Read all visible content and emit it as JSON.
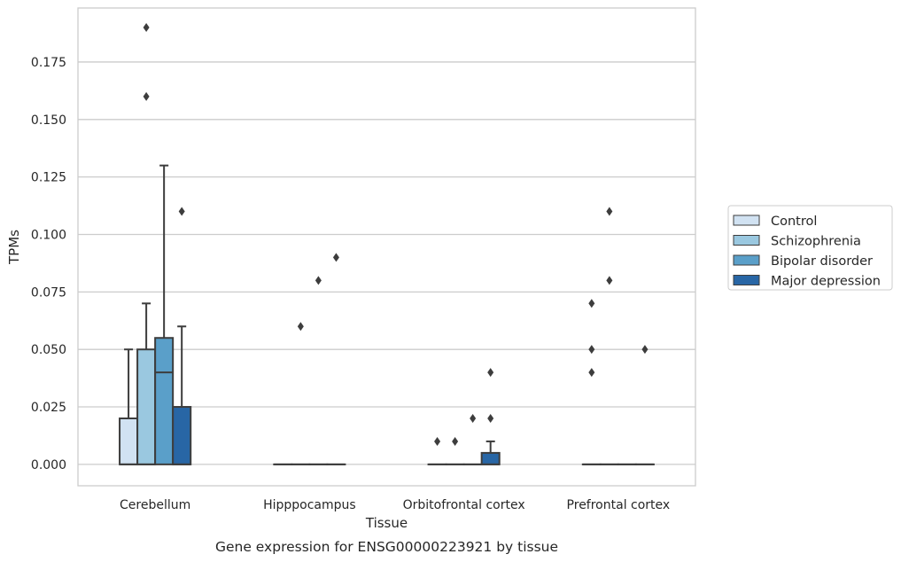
{
  "chart_data": {
    "type": "box",
    "xlabel": "Tissue",
    "ylabel": "TPMs",
    "caption": "Gene expression for ENSG00000223921 by tissue",
    "categories": [
      "Cerebellum",
      "Hipppocampus",
      "Orbitofrontal cortex",
      "Prefrontal cortex"
    ],
    "ylim": [
      -0.0093,
      0.1985
    ],
    "yticks": [
      0.0,
      0.025,
      0.05,
      0.075,
      0.1,
      0.125,
      0.15,
      0.175
    ],
    "ytick_labels": [
      "0.000",
      "0.025",
      "0.050",
      "0.075",
      "0.100",
      "0.125",
      "0.150",
      "0.175"
    ],
    "grid": true,
    "legend_position": "right",
    "series": [
      {
        "name": "Control",
        "color": "#d1e2f2",
        "boxes": [
          {
            "q1": 0.0,
            "median": 0.0,
            "q3": 0.02,
            "whisker_low": 0.0,
            "whisker_high": 0.05,
            "outliers": []
          },
          {
            "q1": 0.0,
            "median": 0.0,
            "q3": 0.0,
            "whisker_low": 0.0,
            "whisker_high": 0.0,
            "outliers": []
          },
          {
            "q1": 0.0,
            "median": 0.0,
            "q3": 0.0,
            "whisker_low": 0.0,
            "whisker_high": 0.0,
            "outliers": [
              0.01
            ]
          },
          {
            "q1": 0.0,
            "median": 0.0,
            "q3": 0.0,
            "whisker_low": 0.0,
            "whisker_high": 0.0,
            "outliers": [
              0.07,
              0.05,
              0.04
            ]
          }
        ]
      },
      {
        "name": "Schizophrenia",
        "color": "#9ac8e0",
        "boxes": [
          {
            "q1": 0.0,
            "median": 0.0,
            "q3": 0.05,
            "whisker_low": 0.0,
            "whisker_high": 0.07,
            "outliers": [
              0.19,
              0.16
            ]
          },
          {
            "q1": 0.0,
            "median": 0.0,
            "q3": 0.0,
            "whisker_low": 0.0,
            "whisker_high": 0.0,
            "outliers": [
              0.06
            ]
          },
          {
            "q1": 0.0,
            "median": 0.0,
            "q3": 0.0,
            "whisker_low": 0.0,
            "whisker_high": 0.0,
            "outliers": [
              0.01
            ]
          },
          {
            "q1": 0.0,
            "median": 0.0,
            "q3": 0.0,
            "whisker_low": 0.0,
            "whisker_high": 0.0,
            "outliers": [
              0.11,
              0.08
            ]
          }
        ]
      },
      {
        "name": "Bipolar disorder",
        "color": "#5a9fc9",
        "boxes": [
          {
            "q1": 0.0,
            "median": 0.04,
            "q3": 0.055,
            "whisker_low": 0.0,
            "whisker_high": 0.13,
            "outliers": []
          },
          {
            "q1": 0.0,
            "median": 0.0,
            "q3": 0.0,
            "whisker_low": 0.0,
            "whisker_high": 0.0,
            "outliers": [
              0.08
            ]
          },
          {
            "q1": 0.0,
            "median": 0.0,
            "q3": 0.0,
            "whisker_low": 0.0,
            "whisker_high": 0.0,
            "outliers": [
              0.02
            ]
          },
          {
            "q1": 0.0,
            "median": 0.0,
            "q3": 0.0,
            "whisker_low": 0.0,
            "whisker_high": 0.0,
            "outliers": []
          }
        ]
      },
      {
        "name": "Major depression",
        "color": "#2866a5",
        "boxes": [
          {
            "q1": 0.0,
            "median": 0.0,
            "q3": 0.025,
            "whisker_low": 0.0,
            "whisker_high": 0.06,
            "outliers": [
              0.11
            ]
          },
          {
            "q1": 0.0,
            "median": 0.0,
            "q3": 0.0,
            "whisker_low": 0.0,
            "whisker_high": 0.0,
            "outliers": [
              0.09
            ]
          },
          {
            "q1": 0.0,
            "median": 0.0,
            "q3": 0.005,
            "whisker_low": 0.0,
            "whisker_high": 0.01,
            "outliers": [
              0.04,
              0.02
            ]
          },
          {
            "q1": 0.0,
            "median": 0.0,
            "q3": 0.0,
            "whisker_low": 0.0,
            "whisker_high": 0.0,
            "outliers": [
              0.05
            ]
          }
        ]
      }
    ]
  }
}
